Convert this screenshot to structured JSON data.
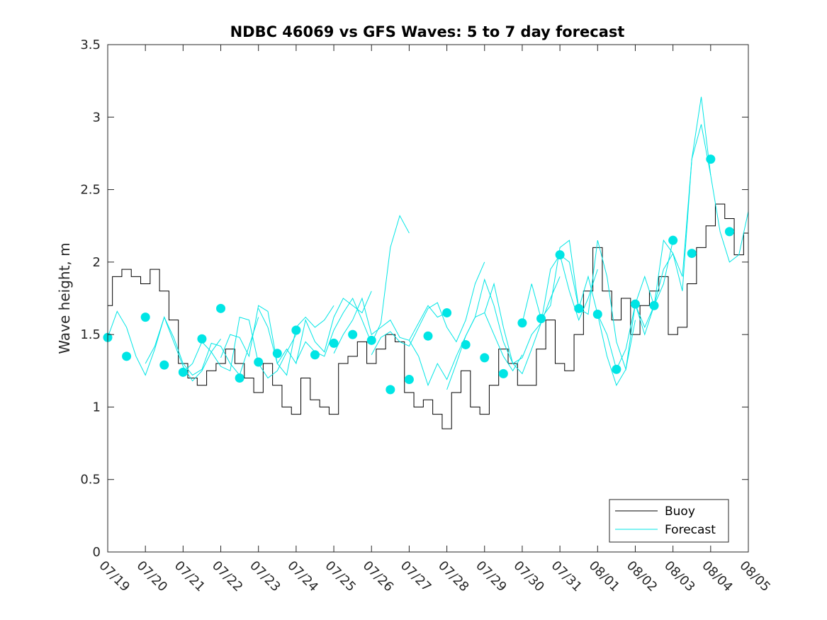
{
  "chart_data": {
    "type": "line",
    "title": "NDBC 46069 vs GFS Waves: 5 to 7 day forecast",
    "xlabel": "",
    "ylabel": "Wave height, m",
    "x_tick_labels": [
      "07/19",
      "07/20",
      "07/21",
      "07/22",
      "07/23",
      "07/24",
      "07/25",
      "07/26",
      "07/27",
      "07/28",
      "07/29",
      "07/30",
      "07/31",
      "08/01",
      "08/02",
      "08/03",
      "08/04",
      "08/05"
    ],
    "y_ticks": [
      0,
      0.5,
      1,
      1.5,
      2,
      2.5,
      3,
      3.5
    ],
    "y_tick_labels": [
      "0",
      "0.5",
      "1",
      "1.5",
      "2",
      "2.5",
      "3",
      "3.5"
    ],
    "xlim_days": [
      0,
      17
    ],
    "ylim": [
      0,
      3.5
    ],
    "grid": false,
    "legend": {
      "placement": "bottom-right",
      "entries": [
        {
          "label": "Buoy",
          "color": "#000000"
        },
        {
          "label": "Forecast",
          "color": "#00e5e5"
        }
      ]
    },
    "colors": {
      "buoy": "#000000",
      "forecast": "#00e5e5",
      "marker": "#00e5e5"
    },
    "buoy": {
      "name": "Buoy",
      "x": [
        0,
        0.25,
        0.5,
        0.75,
        1,
        1.25,
        1.5,
        1.75,
        2,
        2.25,
        2.5,
        2.75,
        3,
        3.25,
        3.5,
        3.75,
        4,
        4.25,
        4.5,
        4.75,
        5,
        5.25,
        5.5,
        5.75,
        6,
        6.25,
        6.5,
        6.75,
        7,
        7.25,
        7.5,
        7.75,
        8,
        8.25,
        8.5,
        8.75,
        9,
        9.25,
        9.5,
        9.75,
        10,
        10.25,
        10.5,
        10.75,
        11,
        11.25,
        11.5,
        11.75,
        12,
        12.25,
        12.5,
        12.75,
        13,
        13.25,
        13.5,
        13.75,
        14,
        14.25,
        14.5,
        14.75,
        15,
        15.25,
        15.5,
        15.75,
        16,
        16.25,
        16.5,
        16.75,
        17
      ],
      "y": [
        1.7,
        1.9,
        1.95,
        1.9,
        1.85,
        1.95,
        1.8,
        1.6,
        1.3,
        1.2,
        1.15,
        1.25,
        1.3,
        1.4,
        1.3,
        1.2,
        1.1,
        1.3,
        1.15,
        1.0,
        0.95,
        1.2,
        1.05,
        1.0,
        0.95,
        1.3,
        1.35,
        1.45,
        1.3,
        1.4,
        1.5,
        1.45,
        1.1,
        1.0,
        1.05,
        0.95,
        0.85,
        1.1,
        1.25,
        1.0,
        0.95,
        1.15,
        1.4,
        1.3,
        1.15,
        1.15,
        1.4,
        1.6,
        1.3,
        1.25,
        1.5,
        1.8,
        2.1,
        1.8,
        1.6,
        1.75,
        1.5,
        1.7,
        1.8,
        1.9,
        1.5,
        1.55,
        1.85,
        2.1,
        2.25,
        2.4,
        2.3,
        2.05,
        2.2
      ]
    },
    "forecast_runs": [
      {
        "x": [
          0,
          0.25,
          0.5,
          0.75,
          1,
          1.25,
          1.5,
          1.75,
          2,
          2.25,
          2.5,
          2.75,
          3
        ],
        "y": [
          1.48,
          1.66,
          1.55,
          1.35,
          1.22,
          1.4,
          1.62,
          1.45,
          1.28,
          1.18,
          1.25,
          1.38,
          1.47
        ]
      },
      {
        "x": [
          1,
          1.25,
          1.5,
          1.75,
          2,
          2.25,
          2.5,
          2.75,
          3,
          3.25,
          3.5,
          3.75,
          4
        ],
        "y": [
          1.3,
          1.42,
          1.62,
          1.48,
          1.3,
          1.22,
          1.26,
          1.44,
          1.42,
          1.3,
          1.22,
          1.42,
          1.62
        ]
      },
      {
        "x": [
          2,
          2.25,
          2.5,
          2.75,
          3,
          3.25,
          3.5,
          3.75,
          4,
          4.25,
          4.5,
          4.75,
          5
        ],
        "y": [
          1.24,
          1.3,
          1.45,
          1.38,
          1.28,
          1.25,
          1.62,
          1.6,
          1.3,
          1.2,
          1.25,
          1.38,
          1.5
        ]
      },
      {
        "x": [
          3,
          3.25,
          3.5,
          3.75,
          4,
          4.25,
          4.5,
          4.75,
          5,
          5.25,
          5.5,
          5.75,
          6
        ],
        "y": [
          1.34,
          1.5,
          1.48,
          1.35,
          1.7,
          1.66,
          1.3,
          1.22,
          1.55,
          1.62,
          1.55,
          1.6,
          1.7
        ]
      },
      {
        "x": [
          4,
          4.25,
          4.5,
          4.75,
          5,
          5.25,
          5.5,
          5.75,
          6,
          6.25,
          6.5,
          6.75,
          7
        ],
        "y": [
          1.68,
          1.55,
          1.3,
          1.4,
          1.3,
          1.6,
          1.45,
          1.38,
          1.62,
          1.75,
          1.7,
          1.65,
          1.8
        ]
      },
      {
        "x": [
          5,
          5.25,
          5.5,
          5.75,
          6,
          6.25,
          6.5,
          6.75,
          7,
          7.25,
          7.5,
          7.75,
          8
        ],
        "y": [
          1.31,
          1.45,
          1.38,
          1.35,
          1.53,
          1.65,
          1.75,
          1.6,
          1.44,
          1.58,
          2.1,
          2.32,
          2.2
        ]
      },
      {
        "x": [
          6,
          6.25,
          6.5,
          6.75,
          7,
          7.25,
          7.5,
          7.75,
          8,
          8.25,
          8.5,
          8.75,
          9
        ],
        "y": [
          1.37,
          1.5,
          1.6,
          1.75,
          1.5,
          1.55,
          1.6,
          1.48,
          1.46,
          1.58,
          1.7,
          1.62,
          1.65
        ]
      },
      {
        "x": [
          7,
          7.25,
          7.5,
          7.75,
          8,
          8.25,
          8.5,
          8.75,
          9,
          9.25,
          9.5,
          9.75,
          10
        ],
        "y": [
          1.36,
          1.48,
          1.52,
          1.45,
          1.42,
          1.55,
          1.68,
          1.72,
          1.55,
          1.45,
          1.6,
          1.85,
          2.0
        ]
      },
      {
        "x": [
          8,
          8.25,
          8.5,
          8.75,
          9,
          9.25,
          9.5,
          9.75,
          10,
          10.25,
          10.5,
          10.75,
          11
        ],
        "y": [
          1.46,
          1.35,
          1.15,
          1.3,
          1.19,
          1.35,
          1.49,
          1.62,
          1.65,
          1.5,
          1.35,
          1.25,
          1.36
        ]
      },
      {
        "x": [
          9,
          9.25,
          9.5,
          9.75,
          10,
          10.25,
          10.5,
          10.75,
          11,
          11.25,
          11.5,
          11.75,
          12
        ],
        "y": [
          1.12,
          1.3,
          1.49,
          1.62,
          1.88,
          1.7,
          1.45,
          1.3,
          1.34,
          1.5,
          1.58,
          1.75,
          1.9
        ]
      },
      {
        "x": [
          10,
          10.25,
          10.5,
          10.75,
          11,
          11.25,
          11.5,
          11.75,
          12,
          12.25,
          12.5,
          12.75,
          13
        ],
        "y": [
          1.65,
          1.85,
          1.55,
          1.3,
          1.23,
          1.4,
          1.58,
          1.95,
          2.05,
          1.8,
          1.6,
          1.75,
          1.95
        ]
      },
      {
        "x": [
          11,
          11.25,
          11.5,
          11.75,
          12,
          12.25,
          12.5,
          12.75,
          13,
          13.25,
          13.5,
          13.75,
          14
        ],
        "y": [
          1.58,
          1.85,
          1.61,
          1.7,
          2.1,
          2.15,
          1.68,
          1.64,
          2.15,
          1.9,
          1.45,
          1.26,
          1.6
        ]
      },
      {
        "x": [
          12,
          12.25,
          12.5,
          12.75,
          13,
          13.25,
          13.5,
          13.75,
          14,
          14.25,
          14.5,
          14.75,
          15
        ],
        "y": [
          2.05,
          2.0,
          1.68,
          1.9,
          1.64,
          1.35,
          1.15,
          1.26,
          1.71,
          1.5,
          1.7,
          1.85,
          2.15
        ]
      },
      {
        "x": [
          13,
          13.25,
          13.5,
          13.75,
          14,
          14.25,
          14.5,
          14.75,
          15,
          15.25,
          15.5,
          15.75,
          16
        ],
        "y": [
          1.64,
          1.5,
          1.26,
          1.4,
          1.71,
          1.55,
          1.7,
          1.95,
          2.06,
          1.9,
          2.71,
          2.95,
          2.6
        ]
      },
      {
        "x": [
          14,
          14.25,
          14.5,
          14.75,
          15,
          15.25,
          15.5,
          15.75,
          16,
          16.25,
          16.5,
          16.75,
          17
        ],
        "y": [
          1.71,
          1.9,
          1.7,
          2.15,
          2.06,
          1.8,
          2.71,
          3.14,
          2.6,
          2.21,
          2.0,
          2.05,
          2.35
        ]
      }
    ],
    "forecast_markers": {
      "x": [
        0,
        0.5,
        1,
        1.5,
        2,
        2.5,
        3,
        3.5,
        4,
        4.5,
        5,
        5.5,
        6,
        6.5,
        7,
        7.5,
        8,
        8.5,
        9,
        9.5,
        10,
        10.5,
        11,
        11.5,
        12,
        12.5,
        13,
        13.5,
        14,
        14.5,
        15,
        15.5,
        16,
        16.5
      ],
      "y": [
        1.48,
        1.35,
        1.62,
        1.29,
        1.24,
        1.47,
        1.68,
        1.2,
        1.31,
        1.37,
        1.53,
        1.36,
        1.44,
        1.5,
        1.46,
        1.12,
        1.19,
        1.49,
        1.65,
        1.43,
        1.34,
        1.23,
        1.58,
        1.61,
        2.05,
        1.68,
        1.64,
        1.26,
        1.71,
        1.7,
        2.15,
        2.06,
        2.71,
        2.21
      ]
    }
  }
}
